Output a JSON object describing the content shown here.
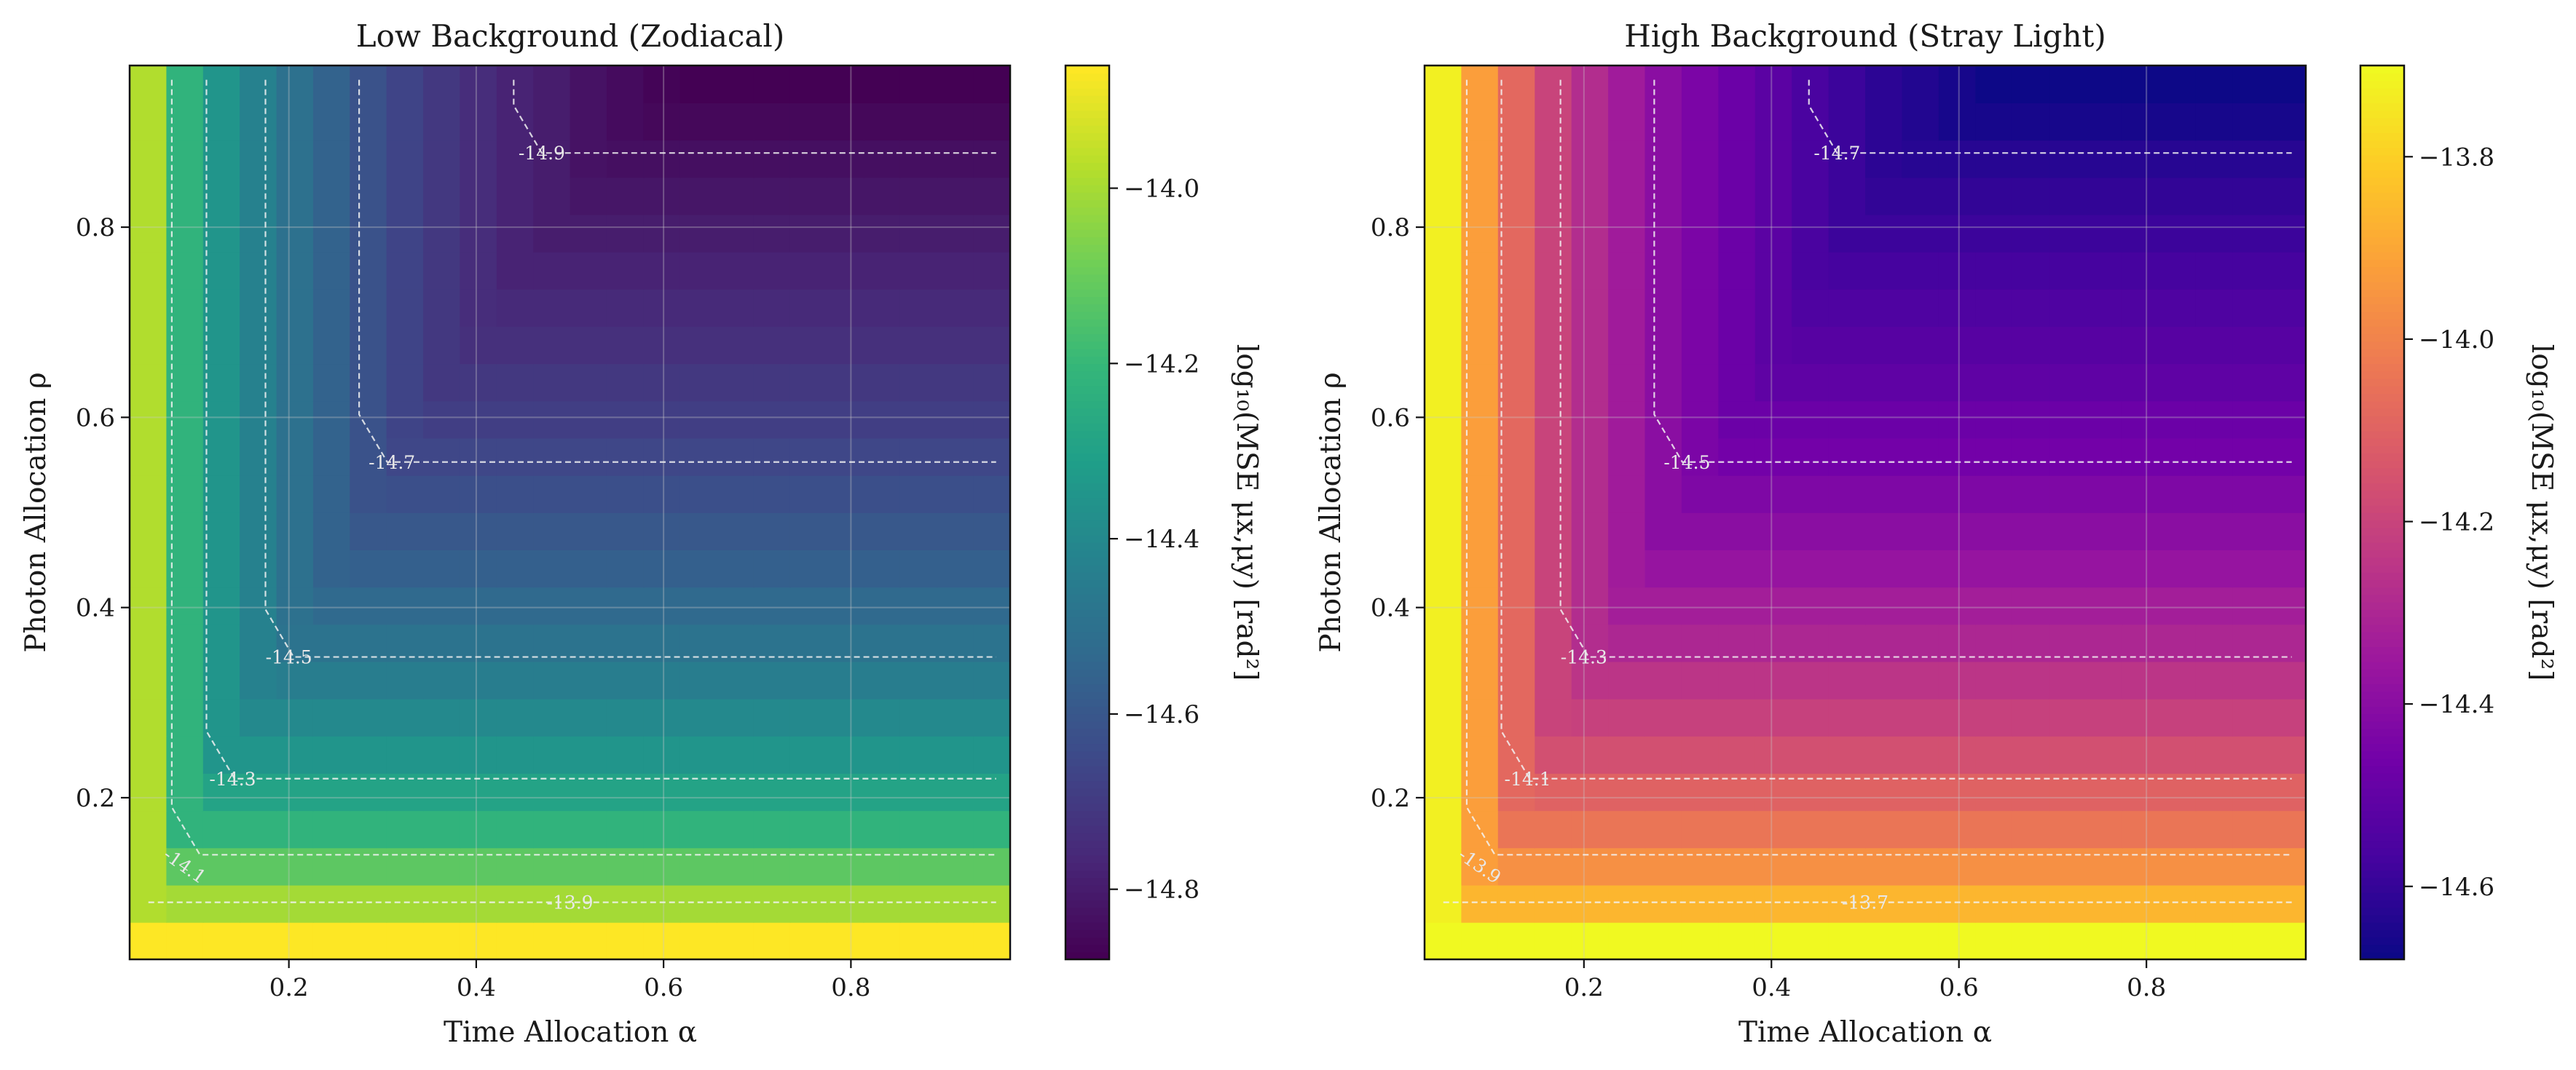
{
  "chart_data": [
    {
      "type": "heatmap",
      "title": "Low Background (Zodiacal)",
      "xlabel": "Time Allocation α",
      "ylabel": "Photon Allocation ρ",
      "colorbar_label": "log₁₀(MSE μx,μy) [rad²]",
      "colormap": "viridis",
      "xlim": [
        0.03,
        0.97
      ],
      "ylim": [
        0.03,
        0.97
      ],
      "x_ticks": [
        "0.2",
        "0.4",
        "0.6",
        "0.8"
      ],
      "y_ticks": [
        "0.2",
        "0.4",
        "0.6",
        "0.8"
      ],
      "clim": [
        -14.88,
        -13.86
      ],
      "colorbar_ticks": [
        "−14.0",
        "−14.2",
        "−14.4",
        "−14.6",
        "−14.8"
      ],
      "grid": true,
      "contours": [
        {
          "level": -13.9,
          "label": "-13.9"
        },
        {
          "level": -14.1,
          "label": "-14.1"
        },
        {
          "level": -14.3,
          "label": "-14.3"
        },
        {
          "level": -14.5,
          "label": "-14.5"
        },
        {
          "level": -14.7,
          "label": "-14.7"
        },
        {
          "level": -14.9,
          "label": "-14.9"
        }
      ],
      "y_band_values": [
        -13.86,
        -14.0,
        -14.12,
        -14.22,
        -14.29,
        -14.35,
        -14.4,
        -14.45,
        -14.49,
        -14.53,
        -14.57,
        -14.6,
        -14.63,
        -14.66,
        -14.69,
        -14.71,
        -14.74,
        -14.76,
        -14.78,
        -14.8,
        -14.82,
        -14.84,
        -14.86,
        -14.88
      ],
      "x_band_values": [
        -13.98,
        -14.22,
        -14.35,
        -14.43,
        -14.5,
        -14.56,
        -14.62,
        -14.67,
        -14.71,
        -14.75,
        -14.78,
        -14.8,
        -14.83,
        -14.85,
        -14.87,
        -14.88,
        -14.88,
        -14.88,
        -14.88,
        -14.88,
        -14.88,
        -14.88,
        -14.88,
        -14.88
      ]
    },
    {
      "type": "heatmap",
      "title": "High Background (Stray Light)",
      "xlabel": "Time Allocation α",
      "ylabel": "Photon Allocation ρ",
      "colorbar_label": "log₁₀(MSE μx,μy) [rad²]",
      "colormap": "plasma",
      "xlim": [
        0.03,
        0.97
      ],
      "ylim": [
        0.03,
        0.97
      ],
      "x_ticks": [
        "0.2",
        "0.4",
        "0.6",
        "0.8"
      ],
      "y_ticks": [
        "0.2",
        "0.4",
        "0.6",
        "0.8"
      ],
      "clim": [
        -14.68,
        -13.7
      ],
      "colorbar_ticks": [
        "−13.8",
        "−14.0",
        "−14.2",
        "−14.4",
        "−14.6"
      ],
      "grid": true,
      "contours": [
        {
          "level": -13.7,
          "label": "-13.7"
        },
        {
          "level": -13.9,
          "label": "-13.9"
        },
        {
          "level": -14.1,
          "label": "-14.1"
        },
        {
          "level": -14.3,
          "label": "-14.3"
        },
        {
          "level": -14.5,
          "label": "-14.5"
        },
        {
          "level": -14.7,
          "label": "-14.7"
        }
      ],
      "y_band_values": [
        -13.7,
        -13.86,
        -13.96,
        -14.04,
        -14.1,
        -14.16,
        -14.21,
        -14.25,
        -14.3,
        -14.33,
        -14.37,
        -14.4,
        -14.43,
        -14.46,
        -14.48,
        -14.51,
        -14.53,
        -14.55,
        -14.57,
        -14.59,
        -14.61,
        -14.63,
        -14.66,
        -14.68
      ],
      "x_band_values": [
        -13.72,
        -13.92,
        -14.08,
        -14.2,
        -14.28,
        -14.34,
        -14.4,
        -14.44,
        -14.48,
        -14.52,
        -14.56,
        -14.59,
        -14.62,
        -14.64,
        -14.66,
        -14.68,
        -14.68,
        -14.68,
        -14.68,
        -14.68,
        -14.68,
        -14.68,
        -14.68,
        -14.68
      ]
    }
  ]
}
